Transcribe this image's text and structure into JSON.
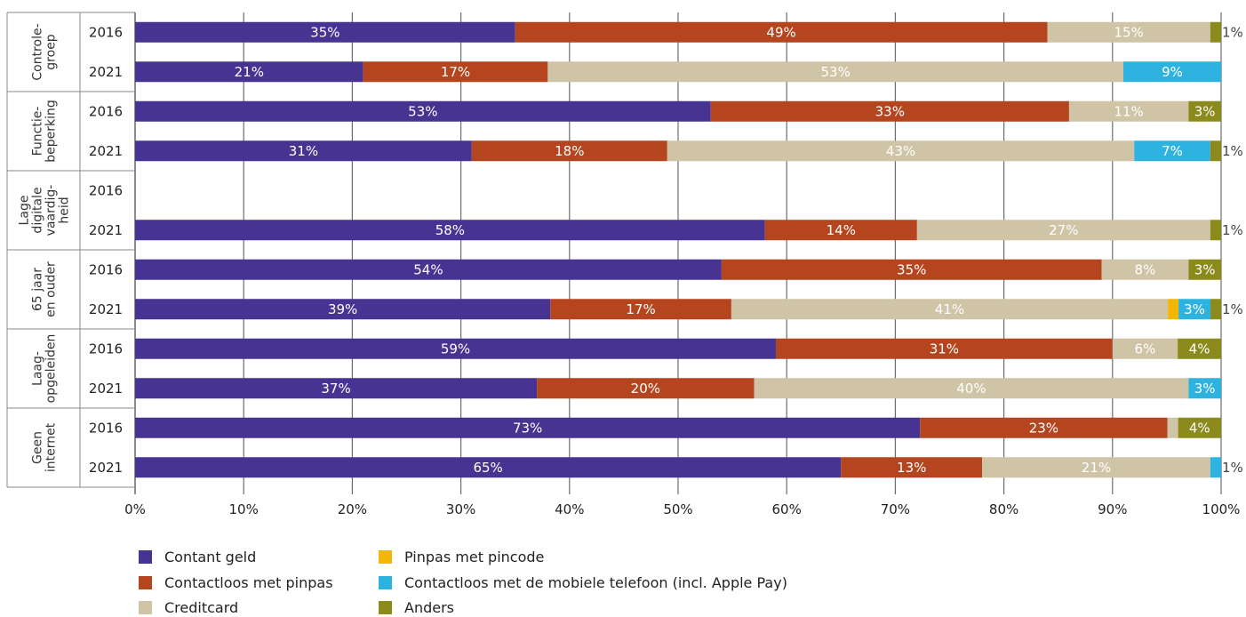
{
  "chart_data": {
    "type": "bar",
    "orientation": "horizontal",
    "stacked": true,
    "title": "",
    "xlabel": "",
    "ylabel": "",
    "xlim": [
      0,
      100
    ],
    "x_ticks": [
      "0%",
      "10%",
      "20%",
      "30%",
      "40%",
      "50%",
      "60%",
      "70%",
      "80%",
      "90%",
      "100%"
    ],
    "grid": true,
    "legend_position": "bottom-left",
    "groups": [
      {
        "label": "Controle-\ngroep",
        "bars": [
          {
            "year": "2016",
            "values": [
              35,
              49,
              15,
              0,
              0,
              1
            ],
            "labels": [
              "35%",
              "49%",
              "15%",
              "",
              "",
              "1%"
            ]
          },
          {
            "year": "2021",
            "values": [
              21,
              17,
              53,
              0,
              9,
              0
            ],
            "labels": [
              "21%",
              "17%",
              "53%",
              "",
              "9%",
              ""
            ]
          }
        ]
      },
      {
        "label": "Functie-\nbeperking",
        "bars": [
          {
            "year": "2016",
            "values": [
              53,
              33,
              11,
              0,
              0,
              3
            ],
            "labels": [
              "53%",
              "33%",
              "11%",
              "",
              "",
              "3%"
            ]
          },
          {
            "year": "2021",
            "values": [
              31,
              18,
              43,
              0,
              7,
              1
            ],
            "labels": [
              "31%",
              "18%",
              "43%",
              "",
              "7%",
              "1%"
            ]
          }
        ]
      },
      {
        "label": "Lage\ndigitale\nvaardig-\nheid",
        "bars": [
          {
            "year": "2016",
            "values": [],
            "labels": []
          },
          {
            "year": "2021",
            "values": [
              58,
              14,
              27,
              0,
              0,
              1
            ],
            "labels": [
              "58%",
              "14%",
              "27%",
              "",
              "",
              "1%"
            ]
          }
        ]
      },
      {
        "label": "65 jaar\nen ouder",
        "bars": [
          {
            "year": "2016",
            "values": [
              54,
              35,
              8,
              0,
              0,
              3
            ],
            "labels": [
              "54%",
              "35%",
              "8%",
              "",
              "",
              "3%"
            ]
          },
          {
            "year": "2021",
            "values": [
              39,
              17,
              41,
              1,
              3,
              1
            ],
            "labels": [
              "39%",
              "17%",
              "41%",
              "1%",
              "3%",
              "1%"
            ]
          }
        ]
      },
      {
        "label": "Laag-\nopgeleiden",
        "bars": [
          {
            "year": "2016",
            "values": [
              59,
              31,
              6,
              0,
              0,
              4
            ],
            "labels": [
              "59%",
              "31%",
              "6%",
              "",
              "",
              "4%"
            ]
          },
          {
            "year": "2021",
            "values": [
              37,
              20,
              40,
              0,
              3,
              0
            ],
            "labels": [
              "37%",
              "20%",
              "40%",
              "",
              "3%",
              ""
            ]
          }
        ]
      },
      {
        "label": "Geen\ninternet",
        "bars": [
          {
            "year": "2016",
            "values": [
              73,
              23,
              1,
              0,
              0,
              4
            ],
            "labels": [
              "73%",
              "23%",
              "1%",
              "",
              "",
              "4%"
            ]
          },
          {
            "year": "2021",
            "values": [
              65,
              13,
              21,
              0,
              1,
              0
            ],
            "labels": [
              "65%",
              "13%",
              "21%",
              "",
              "1%",
              ""
            ]
          }
        ]
      }
    ],
    "series": [
      {
        "name": "Contant geld",
        "color": "#473391"
      },
      {
        "name": "Contactloos met pinpas",
        "color": "#b5451f"
      },
      {
        "name": "Creditcard",
        "color": "#d0c4a6"
      },
      {
        "name": "Pinpas met pincode",
        "color": "#f2b705"
      },
      {
        "name": "Contactloos met de mobiele telefoon (incl. Apple Pay)",
        "color": "#2eb3e0"
      },
      {
        "name": "Anders",
        "color": "#8b8a1c"
      }
    ]
  }
}
